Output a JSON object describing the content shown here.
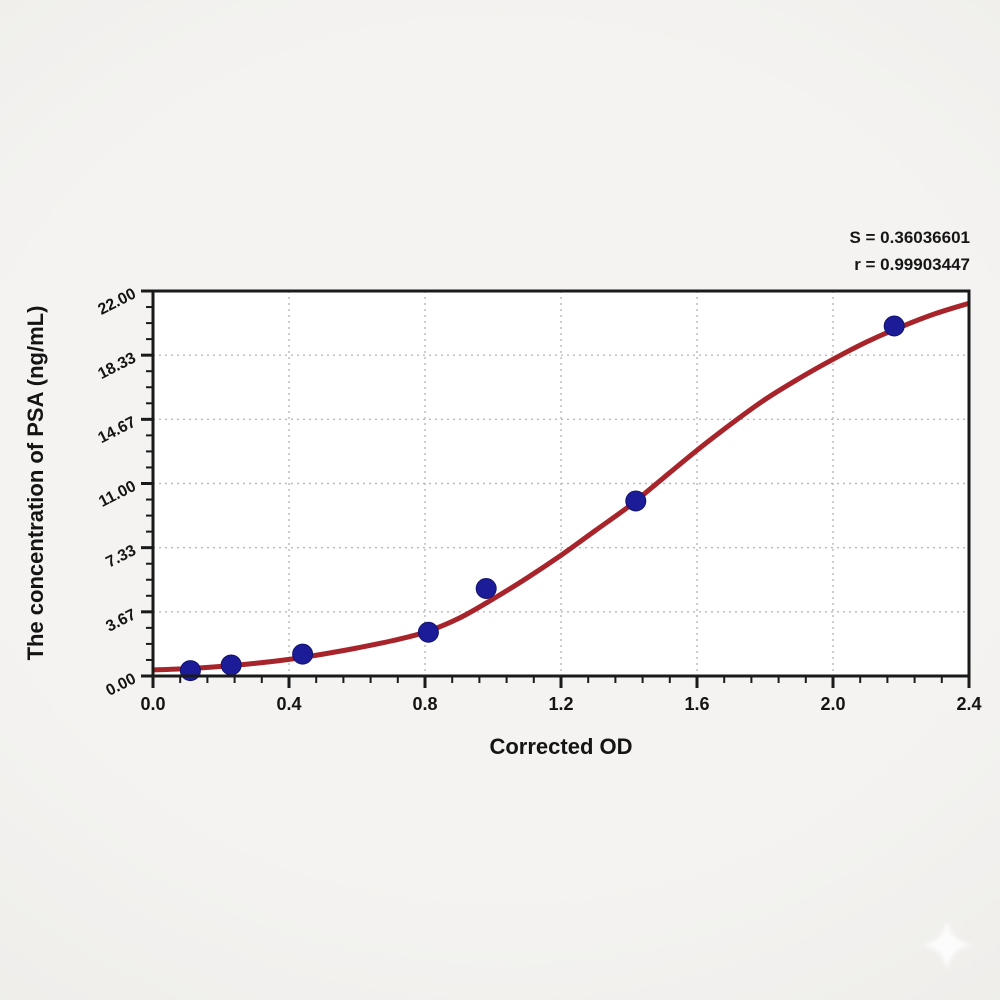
{
  "stats": {
    "s_label": "S = 0.36036601",
    "r_label": "r = 0.99903447"
  },
  "chart_data": {
    "type": "scatter",
    "title": "",
    "xlabel": "Corrected OD",
    "ylabel": "The concentration of PSA (ng/mL)",
    "xlim": [
      0,
      2.4
    ],
    "ylim": [
      0,
      22
    ],
    "grid": true,
    "legend": "none",
    "x_ticks": {
      "values": [
        0,
        0.4,
        0.8,
        1.2,
        1.6,
        2.0,
        2.4
      ],
      "labels": [
        "0.0",
        "0.4",
        "0.8",
        "1.2",
        "1.6",
        "2.0",
        "2.4"
      ],
      "minor_divisions": 5
    },
    "y_ticks": {
      "values": [
        0,
        3.6667,
        7.3333,
        11.0,
        14.6667,
        18.3333,
        22.0
      ],
      "labels": [
        "0.00",
        "3.67",
        "7.33",
        "11.00",
        "14.67",
        "18.33",
        "22.00"
      ],
      "minor_divisions": 4
    },
    "series": [
      {
        "name": "standard-points",
        "type": "scatter",
        "color": "#1c1c99",
        "marker_radius": 10,
        "points": [
          [
            0.11,
            0.31
          ],
          [
            0.23,
            0.63
          ],
          [
            0.44,
            1.25
          ],
          [
            0.81,
            2.5
          ],
          [
            0.98,
            5.0
          ],
          [
            1.42,
            10.0
          ],
          [
            2.18,
            20.0
          ]
        ]
      },
      {
        "name": "4pl-fit-curve",
        "type": "line",
        "color": "#a8242b",
        "stroke_width": 5,
        "points": [
          [
            0,
            0.35
          ],
          [
            0.1,
            0.42
          ],
          [
            0.2,
            0.55
          ],
          [
            0.3,
            0.72
          ],
          [
            0.4,
            0.95
          ],
          [
            0.5,
            1.25
          ],
          [
            0.6,
            1.6
          ],
          [
            0.7,
            2.0
          ],
          [
            0.8,
            2.5
          ],
          [
            0.9,
            3.3
          ],
          [
            1.0,
            4.4
          ],
          [
            1.1,
            5.6
          ],
          [
            1.2,
            6.9
          ],
          [
            1.3,
            8.3
          ],
          [
            1.4,
            9.7
          ],
          [
            1.5,
            11.3
          ],
          [
            1.6,
            12.9
          ],
          [
            1.7,
            14.4
          ],
          [
            1.8,
            15.8
          ],
          [
            1.9,
            17.0
          ],
          [
            2.0,
            18.1
          ],
          [
            2.1,
            19.1
          ],
          [
            2.2,
            19.95
          ],
          [
            2.3,
            20.7
          ],
          [
            2.4,
            21.3
          ]
        ]
      }
    ],
    "fit_stats": {
      "S": 0.36036601,
      "r": 0.99903447
    },
    "colors": {
      "spine": "#1a1a1a",
      "grid": "#b9b9b9",
      "plot_background": "#ffffff",
      "text": "#141414"
    }
  },
  "watermark": {
    "shape": "four-point-star",
    "color": "#ffffff"
  }
}
